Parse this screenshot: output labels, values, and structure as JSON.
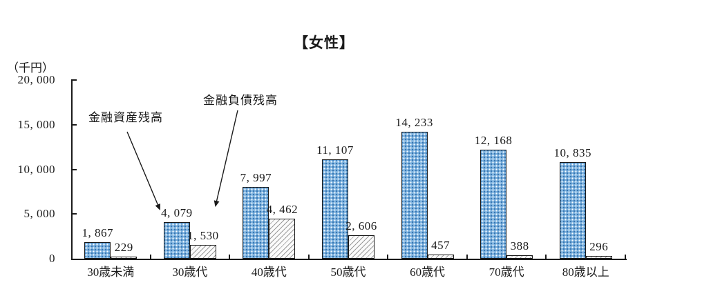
{
  "chart_data": {
    "type": "bar",
    "title": "【女性】",
    "unit_label": "（千円）",
    "categories": [
      "30歳未満",
      "30歳代",
      "40歳代",
      "50歳代",
      "60歳代",
      "70歳代",
      "80歳以上"
    ],
    "series": [
      {
        "name": "金融資産残高",
        "values": [
          1867,
          4079,
          7997,
          11107,
          14233,
          12168,
          10835
        ],
        "value_labels": [
          "1, 867",
          "4, 079",
          "7, 997",
          "11, 107",
          "14, 233",
          "12, 168",
          "10, 835"
        ],
        "style": "blue-dotted-pattern"
      },
      {
        "name": "金融負債残高",
        "values": [
          229,
          1530,
          4462,
          2606,
          457,
          388,
          296
        ],
        "value_labels": [
          "229",
          "1, 530",
          "4, 462",
          "2, 606",
          "457",
          "388",
          "296"
        ],
        "style": "white-diagonal-hatch"
      }
    ],
    "y_axis": {
      "min": 0,
      "max": 20000,
      "tick_step": 5000,
      "tick_labels": [
        "0",
        "5, 000",
        "10, 000",
        "15, 000",
        "20, 000"
      ]
    },
    "grid": false,
    "legend_position": "none",
    "annotations": [
      {
        "text": "金融資産残高",
        "arrow_points_to": "30歳代 asset bar"
      },
      {
        "text": "金融負債残高",
        "arrow_points_to": "30歳代 liability bar"
      }
    ],
    "colors": {
      "asset_base": "#79AFDD",
      "asset_dot_dark": "#2E6DA8",
      "asset_dot_light": "#FFFFFF",
      "hatch_bg": "#FBFBFB",
      "hatch_line": "#9A9A9A",
      "axis": "#1A1A1A",
      "text": "#1A1A1A"
    }
  }
}
